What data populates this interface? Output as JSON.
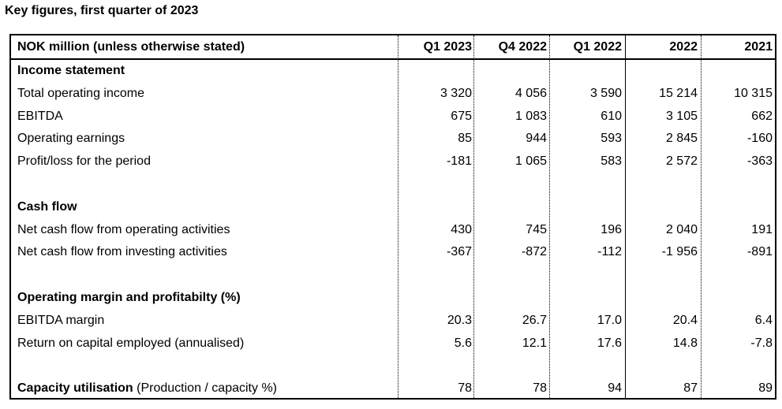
{
  "title": "Key figures, first quarter of 2023",
  "columns": [
    "NOK million (unless otherwise stated)",
    "Q1 2023",
    "Q4 2022",
    "Q1 2022",
    "2022",
    "2021"
  ],
  "rows": [
    {
      "label": "Income statement",
      "section": true,
      "values": []
    },
    {
      "label": "Total operating income",
      "values": [
        "3 320",
        "4 056",
        "3 590",
        "15 214",
        "10 315"
      ]
    },
    {
      "label": "EBITDA",
      "values": [
        "675",
        "1 083",
        "610",
        "3 105",
        "662"
      ]
    },
    {
      "label": "Operating earnings",
      "values": [
        "85",
        "944",
        "593",
        "2 845",
        "-160"
      ]
    },
    {
      "label": "Profit/loss for the period",
      "values": [
        "-181",
        "1 065",
        "583",
        "2 572",
        "-363"
      ]
    },
    {
      "label": "",
      "values": []
    },
    {
      "label": "Cash flow",
      "section": true,
      "values": []
    },
    {
      "label": "Net cash flow from operating activities",
      "values": [
        "430",
        "745",
        "196",
        "2 040",
        "191"
      ]
    },
    {
      "label": "Net cash flow from investing activities",
      "values": [
        "-367",
        "-872",
        "-112",
        "-1 956",
        "-891"
      ]
    },
    {
      "label": "",
      "values": []
    },
    {
      "label": "Operating margin and profitabilty (%)",
      "section": true,
      "values": []
    },
    {
      "label": "EBITDA margin",
      "values": [
        "20.3",
        "26.7",
        "17.0",
        "20.4",
        "6.4"
      ]
    },
    {
      "label": "Return on capital employed (annualised)",
      "values": [
        "5.6",
        "12.1",
        "17.6",
        "14.8",
        "-7.8"
      ]
    },
    {
      "label": "",
      "values": []
    },
    {
      "label": "Capacity utilisation",
      "label_suffix": " (Production / capacity %)",
      "section": true,
      "values": [
        "78",
        "78",
        "94",
        "87",
        "89"
      ]
    }
  ]
}
